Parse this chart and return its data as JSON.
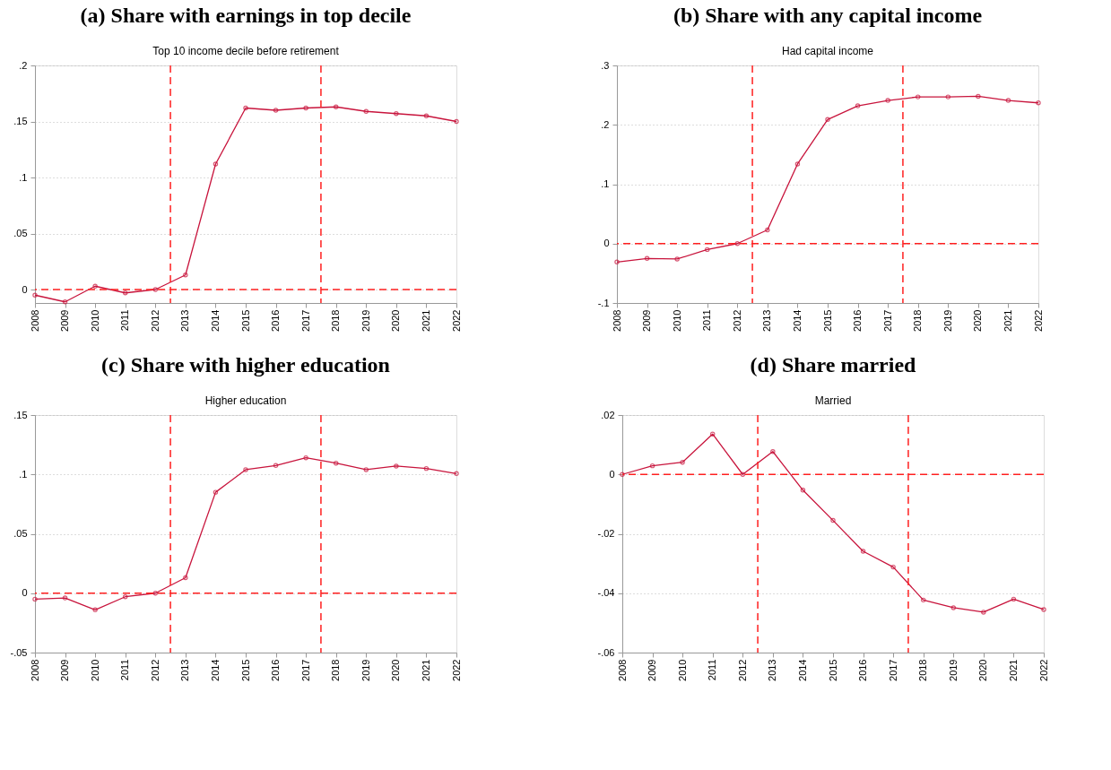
{
  "chart_data": [
    {
      "type": "line",
      "title": "(a) Share with earnings in top decile",
      "subtitle": "Top 10 income decile before retirement",
      "x": [
        2008,
        2009,
        2010,
        2011,
        2012,
        2013,
        2014,
        2015,
        2016,
        2017,
        2018,
        2019,
        2020,
        2021,
        2022
      ],
      "series": [
        {
          "color": "#c8143c",
          "values": [
            -0.005,
            -0.011,
            0.003,
            -0.003,
            0,
            0.013,
            0.112,
            0.162,
            0.16,
            0.162,
            0.163,
            0.159,
            0.157,
            0.155,
            0.15
          ]
        }
      ],
      "xlim": [
        2008,
        2022
      ],
      "xticks": [
        2008,
        2009,
        2010,
        2011,
        2012,
        2013,
        2014,
        2015,
        2016,
        2017,
        2018,
        2019,
        2020,
        2021,
        2022
      ],
      "ylim": [
        -0.012,
        0.2
      ],
      "yticks": [
        {
          "value": 0,
          "label": "0"
        },
        {
          "value": 0.05,
          "label": ".05"
        },
        {
          "value": 0.1,
          "label": ".1"
        },
        {
          "value": 0.15,
          "label": ".15"
        },
        {
          "value": 0.2,
          "label": ".2"
        }
      ],
      "ref_lines": [
        {
          "axis": "x",
          "value": 2012.5,
          "color": "#ff2020",
          "line_style": "dashed"
        },
        {
          "axis": "x",
          "value": 2017.5,
          "color": "#ff2020",
          "line_style": "dashed"
        },
        {
          "axis": "y",
          "value": 0,
          "color": "#ff2020",
          "line_style": "dashed"
        }
      ],
      "grid": "y",
      "marker": "circle",
      "line_style": "solid"
    },
    {
      "type": "line",
      "title": "(b) Share with any capital income",
      "subtitle": "Had capital income",
      "x": [
        2008,
        2009,
        2010,
        2011,
        2012,
        2013,
        2014,
        2015,
        2016,
        2017,
        2018,
        2019,
        2020,
        2021,
        2022
      ],
      "series": [
        {
          "color": "#c8143c",
          "values": [
            -0.031,
            -0.025,
            -0.026,
            -0.01,
            0,
            0.023,
            0.134,
            0.209,
            0.232,
            0.241,
            0.247,
            0.247,
            0.248,
            0.241,
            0.237
          ]
        }
      ],
      "xlim": [
        2008,
        2022
      ],
      "xticks": [
        2008,
        2009,
        2010,
        2011,
        2012,
        2013,
        2014,
        2015,
        2016,
        2017,
        2018,
        2019,
        2020,
        2021,
        2022
      ],
      "ylim": [
        -0.1,
        0.3
      ],
      "yticks": [
        {
          "value": -0.1,
          "label": "-.1"
        },
        {
          "value": 0,
          "label": "0"
        },
        {
          "value": 0.1,
          "label": ".1"
        },
        {
          "value": 0.2,
          "label": ".2"
        },
        {
          "value": 0.3,
          "label": ".3"
        }
      ],
      "ref_lines": [
        {
          "axis": "x",
          "value": 2012.5,
          "color": "#ff2020",
          "line_style": "dashed"
        },
        {
          "axis": "x",
          "value": 2017.5,
          "color": "#ff2020",
          "line_style": "dashed"
        },
        {
          "axis": "y",
          "value": 0,
          "color": "#ff2020",
          "line_style": "dashed"
        }
      ],
      "grid": "y",
      "marker": "circle",
      "line_style": "solid"
    },
    {
      "type": "line",
      "title": "(c) Share with higher education",
      "subtitle": "Higher education",
      "x": [
        2008,
        2009,
        2010,
        2011,
        2012,
        2013,
        2014,
        2015,
        2016,
        2017,
        2018,
        2019,
        2020,
        2021,
        2022
      ],
      "series": [
        {
          "color": "#c8143c",
          "values": [
            -0.005,
            -0.004,
            -0.014,
            -0.003,
            0,
            0.013,
            0.085,
            0.104,
            0.1075,
            0.114,
            0.1095,
            0.104,
            0.107,
            0.105,
            0.1007
          ]
        }
      ],
      "xlim": [
        2008,
        2022
      ],
      "xticks": [
        2008,
        2009,
        2010,
        2011,
        2012,
        2013,
        2014,
        2015,
        2016,
        2017,
        2018,
        2019,
        2020,
        2021,
        2022
      ],
      "ylim": [
        -0.05,
        0.15
      ],
      "yticks": [
        {
          "value": -0.05,
          "label": "-.05"
        },
        {
          "value": 0,
          "label": "0"
        },
        {
          "value": 0.05,
          "label": ".05"
        },
        {
          "value": 0.1,
          "label": ".1"
        },
        {
          "value": 0.15,
          "label": ".15"
        }
      ],
      "ref_lines": [
        {
          "axis": "x",
          "value": 2012.5,
          "color": "#ff2020",
          "line_style": "dashed"
        },
        {
          "axis": "x",
          "value": 2017.5,
          "color": "#ff2020",
          "line_style": "dashed"
        },
        {
          "axis": "y",
          "value": 0,
          "color": "#ff2020",
          "line_style": "dashed"
        }
      ],
      "grid": "y",
      "marker": "circle",
      "line_style": "solid"
    },
    {
      "type": "line",
      "title": "(d) Share married",
      "subtitle": "Married",
      "x": [
        2008,
        2009,
        2010,
        2011,
        2012,
        2013,
        2014,
        2015,
        2016,
        2017,
        2018,
        2019,
        2020,
        2021,
        2022
      ],
      "series": [
        {
          "color": "#c8143c",
          "values": [
            0,
            0.0029,
            0.0041,
            0.0136,
            0,
            0.0077,
            -0.0053,
            -0.0155,
            -0.0259,
            -0.0312,
            -0.0423,
            -0.0449,
            -0.0464,
            -0.042,
            -0.0455
          ]
        }
      ],
      "xlim": [
        2008,
        2022
      ],
      "xticks": [
        2008,
        2009,
        2010,
        2011,
        2012,
        2013,
        2014,
        2015,
        2016,
        2017,
        2018,
        2019,
        2020,
        2021,
        2022
      ],
      "ylim": [
        -0.06,
        0.02
      ],
      "yticks": [
        {
          "value": -0.06,
          "label": "-.06"
        },
        {
          "value": -0.04,
          "label": "-.04"
        },
        {
          "value": -0.02,
          "label": "-.02"
        },
        {
          "value": 0,
          "label": "0"
        },
        {
          "value": 0.02,
          "label": ".02"
        }
      ],
      "ref_lines": [
        {
          "axis": "x",
          "value": 2012.5,
          "color": "#ff2020",
          "line_style": "dashed"
        },
        {
          "axis": "x",
          "value": 2017.5,
          "color": "#ff2020",
          "line_style": "dashed"
        },
        {
          "axis": "y",
          "value": 0,
          "color": "#ff2020",
          "line_style": "dashed"
        }
      ],
      "grid": "y",
      "marker": "circle",
      "line_style": "solid"
    }
  ]
}
